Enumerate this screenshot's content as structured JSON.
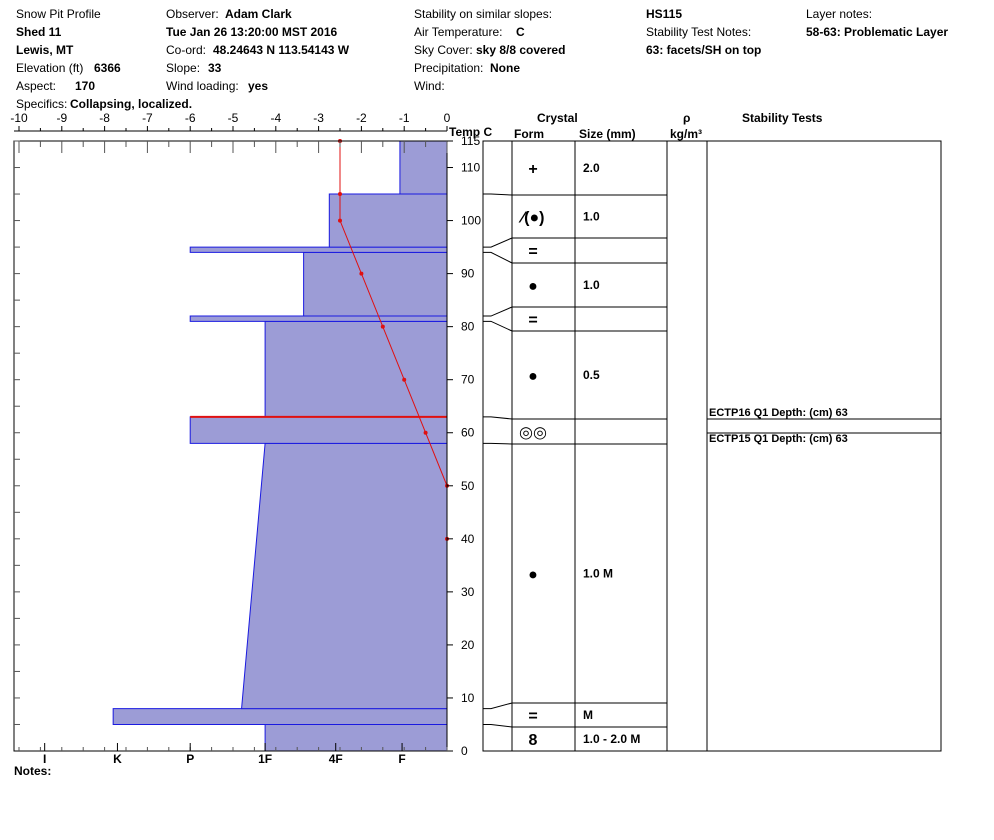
{
  "header": {
    "title": "Snow Pit Profile",
    "site": "Shed 11",
    "location": "Lewis, MT",
    "elevation_label": "Elevation (ft)",
    "elevation_value": "6366",
    "aspect_label": "Aspect:",
    "aspect_value": "170",
    "specifics_label": "Specifics:",
    "specifics_value": "Collapsing, localized.",
    "observer_label": "Observer:",
    "observer_value": "Adam Clark",
    "datetime": "Tue Jan 26 13:20:00 MST 2016",
    "coord_label": "Co-ord:",
    "coord_value": "48.24643 N 113.54143 W",
    "slope_label": "Slope:",
    "slope_value": "33",
    "wind_loading_label": "Wind loading:",
    "wind_loading_value": "yes",
    "stability_similar_label": "Stability on similar slopes:",
    "air_temp_label": "Air Temperature:",
    "air_temp_value": "C",
    "sky_label": "Sky Cover:",
    "sky_value": "sky 8/8 covered",
    "precip_label": "Precipitation:",
    "precip_value": "None",
    "wind_label": "Wind:",
    "hs": "HS115",
    "stability_notes_label": "Stability Test Notes:",
    "stability_notes_value": "63: facets/SH on top",
    "layer_notes_label": "Layer notes:",
    "layer_notes_value": "58-63: Problematic Layer"
  },
  "columns": {
    "temp_header": "Temp C",
    "crystal": "Crystal",
    "form": "Form",
    "size": "Size (mm)",
    "rho": "ρ",
    "rho_unit": "kg/m³",
    "stability": "Stability Tests"
  },
  "notes_label": "Notes:",
  "chart_data": {
    "type": "area",
    "temp_axis": {
      "range": [
        -10,
        0
      ],
      "ticks": [
        "-10",
        "-9",
        "-8",
        "-7",
        "-6",
        "-5",
        "-4",
        "-3",
        "-2",
        "-1",
        "0"
      ]
    },
    "height_axis": {
      "range": [
        0,
        115
      ],
      "ticks": [
        "0",
        "10",
        "20",
        "30",
        "40",
        "50",
        "60",
        "70",
        "80",
        "90",
        "100",
        "110",
        "115"
      ]
    },
    "hardness_axis": {
      "categories": [
        "I",
        "K",
        "P",
        "1F",
        "4F",
        "F"
      ],
      "values_in_temp_units": [
        -9.4,
        -7.7,
        -6,
        -4.25,
        -2.6,
        -1.05
      ]
    },
    "hardness_profile": [
      {
        "from": 0,
        "to": 5,
        "hardness": -4.25
      },
      {
        "from": 5,
        "to": 8,
        "hardness": -7.8
      },
      {
        "from": 8,
        "to": 58,
        "hardness_bottom": -4.8,
        "hardness_top": -4.25
      },
      {
        "from": 58,
        "to": 63,
        "hardness": -6
      },
      {
        "from": 63,
        "to": 81,
        "hardness": -4.25
      },
      {
        "from": 81,
        "to": 82,
        "hardness": -6
      },
      {
        "from": 82,
        "to": 94,
        "hardness": -3.35
      },
      {
        "from": 94,
        "to": 95,
        "hardness": -6
      },
      {
        "from": 95,
        "to": 105,
        "hardness": -2.75
      },
      {
        "from": 105,
        "to": 115,
        "hardness": -1.1
      }
    ],
    "temperature_profile": {
      "series_color": "#e01010",
      "points": [
        {
          "h": 115,
          "t": -2.5
        },
        {
          "h": 105,
          "t": -2.5
        },
        {
          "h": 100,
          "t": -2.5
        },
        {
          "h": 90,
          "t": -2.0
        },
        {
          "h": 80,
          "t": -1.5
        },
        {
          "h": 70,
          "t": -1.0
        },
        {
          "h": 60,
          "t": -0.5
        },
        {
          "h": 50,
          "t": 0
        },
        {
          "h": 40,
          "t": 0
        }
      ]
    },
    "stability_test_depth": 63,
    "fill_color": "#9c9cd6",
    "edge_color": "#1a1ae0"
  },
  "layers": [
    {
      "top": 115,
      "bottom": 105,
      "form_icon": "precipitation-particles-icon",
      "glyph": "+",
      "size": "2.0"
    },
    {
      "top": 105,
      "bottom": 97,
      "form_icon": "decomposing-rounded-icon",
      "glyph": "⁄(●)",
      "size": "1.0"
    },
    {
      "top": 95,
      "bottom": 94,
      "form_icon": "surface-hoar-icon",
      "glyph": "=",
      "size": ""
    },
    {
      "top": 94,
      "bottom": 83,
      "form_icon": "rounded-grains-icon",
      "glyph": "●",
      "size": "1.0"
    },
    {
      "top": 82,
      "bottom": 81,
      "form_icon": "surface-hoar-icon",
      "glyph": "=",
      "size": ""
    },
    {
      "top": 79,
      "bottom": 63,
      "form_icon": "rounded-grains-icon",
      "glyph": "●",
      "size": "0.5"
    },
    {
      "top": 63,
      "bottom": 58,
      "form_icon": "melt-forms-icon",
      "glyph": "◎◎",
      "size": ""
    },
    {
      "top": 58,
      "bottom": 8,
      "form_icon": "rounded-grains-icon",
      "glyph": "●",
      "size": "1.0 M"
    },
    {
      "top": 8,
      "bottom": 5,
      "form_icon": "surface-hoar-icon",
      "glyph": "=",
      "size": "M"
    },
    {
      "top": 5,
      "bottom": 0,
      "form_icon": "depth-hoar-icon",
      "glyph": "8",
      "size": "1.0 - 2.0 M"
    }
  ],
  "stability_tests": [
    {
      "text": "ECTP16 Q1 Depth: (cm) 63"
    },
    {
      "text": "ECTP15 Q1 Depth: (cm) 63"
    }
  ]
}
